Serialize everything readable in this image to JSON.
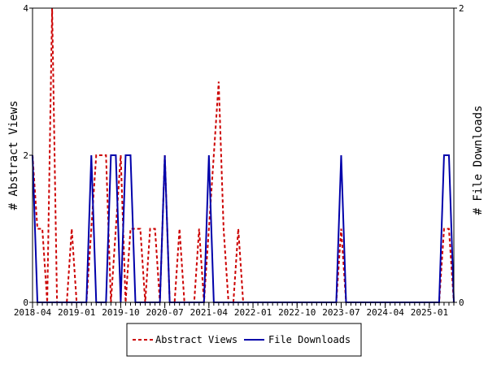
{
  "chart_data": {
    "type": "line",
    "title": "",
    "xlabel": "",
    "ylabel": "# Abstract Views",
    "y2label": "# File Downloads",
    "ylim": [
      0,
      4
    ],
    "y2lim": [
      0,
      2
    ],
    "yticks": [
      0,
      2,
      4
    ],
    "y2ticks": [
      0,
      2
    ],
    "x_tick_labels": [
      "2018-04",
      "2019-01",
      "2019-10",
      "2020-07",
      "2021-04",
      "2022-01",
      "2022-10",
      "2023-07",
      "2024-04",
      "2025-01"
    ],
    "x_start": "2018-04",
    "x_end": "2025-06",
    "grid": false,
    "legend_position": "bottom-center",
    "x": [
      "2018-04",
      "2018-05",
      "2018-06",
      "2018-07",
      "2018-08",
      "2018-09",
      "2018-10",
      "2018-11",
      "2018-12",
      "2019-01",
      "2019-02",
      "2019-03",
      "2019-04",
      "2019-05",
      "2019-06",
      "2019-07",
      "2019-08",
      "2019-09",
      "2019-10",
      "2019-11",
      "2019-12",
      "2020-01",
      "2020-02",
      "2020-03",
      "2020-04",
      "2020-05",
      "2020-06",
      "2020-07",
      "2020-08",
      "2020-09",
      "2020-10",
      "2020-11",
      "2020-12",
      "2021-01",
      "2021-02",
      "2021-03",
      "2021-04",
      "2021-05",
      "2021-06",
      "2021-07",
      "2021-08",
      "2021-09",
      "2021-10",
      "2021-11",
      "2021-12",
      "2022-01",
      "2022-02",
      "2022-03",
      "2022-04",
      "2022-05",
      "2022-06",
      "2022-07",
      "2022-08",
      "2022-09",
      "2022-10",
      "2022-11",
      "2022-12",
      "2023-01",
      "2023-02",
      "2023-03",
      "2023-04",
      "2023-05",
      "2023-06",
      "2023-07",
      "2023-08",
      "2023-09",
      "2023-10",
      "2023-11",
      "2023-12",
      "2024-01",
      "2024-02",
      "2024-03",
      "2024-04",
      "2024-05",
      "2024-06",
      "2024-07",
      "2024-08",
      "2024-09",
      "2024-10",
      "2024-11",
      "2024-12",
      "2025-01",
      "2025-02",
      "2025-03",
      "2025-04",
      "2025-05",
      "2025-06"
    ],
    "series": [
      {
        "name": "Abstract Views",
        "axis": "left",
        "color": "#cc0000",
        "style": "dashed",
        "values": [
          2,
          1,
          1,
          0,
          4,
          0,
          0,
          0,
          1,
          0,
          0,
          0,
          1,
          2,
          2,
          2,
          0,
          1,
          2,
          0,
          1,
          1,
          1,
          0,
          1,
          1,
          0,
          2,
          0,
          0,
          1,
          0,
          0,
          0,
          1,
          0,
          1,
          2,
          3,
          1,
          0,
          0,
          1,
          0,
          0,
          0,
          0,
          0,
          0,
          0,
          0,
          0,
          0,
          0,
          0,
          0,
          0,
          0,
          0,
          0,
          0,
          0,
          0,
          1,
          0,
          0,
          0,
          0,
          0,
          0,
          0,
          0,
          0,
          0,
          0,
          0,
          0,
          0,
          0,
          0,
          0,
          0,
          0,
          0,
          1,
          1,
          0
        ]
      },
      {
        "name": "File Downloads",
        "axis": "right",
        "color": "#0000aa",
        "style": "solid",
        "values": [
          1,
          0,
          0,
          0,
          0,
          0,
          0,
          0,
          0,
          0,
          0,
          0,
          1,
          0,
          0,
          0,
          1,
          1,
          0,
          1,
          1,
          0,
          0,
          0,
          0,
          0,
          0,
          1,
          0,
          0,
          0,
          0,
          0,
          0,
          0,
          0,
          1,
          0,
          0,
          0,
          0,
          0,
          0,
          0,
          0,
          0,
          0,
          0,
          0,
          0,
          0,
          0,
          0,
          0,
          0,
          0,
          0,
          0,
          0,
          0,
          0,
          0,
          0,
          1,
          0,
          0,
          0,
          0,
          0,
          0,
          0,
          0,
          0,
          0,
          0,
          0,
          0,
          0,
          0,
          0,
          0,
          0,
          0,
          0,
          1,
          1,
          0
        ]
      }
    ]
  }
}
